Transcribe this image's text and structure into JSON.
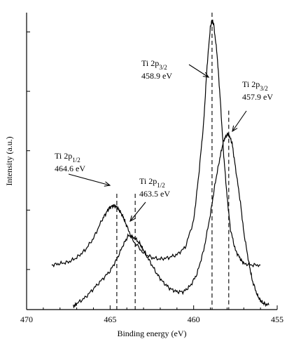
{
  "chart_data": {
    "type": "line",
    "xlabel": "Binding energy (eV)",
    "ylabel": "Intensity (a.u.)",
    "xlim": [
      470,
      455
    ],
    "x_reversed": true,
    "ylim": [
      0,
      1
    ],
    "x_ticks": [
      470,
      465,
      460,
      455
    ],
    "x_minor_ticks": [
      469,
      468,
      467,
      466,
      464,
      463,
      462,
      461,
      459,
      458,
      457,
      456
    ],
    "y_ticks": [
      0.135,
      0.335,
      0.535,
      0.735,
      0.935
    ],
    "y_tick_labels_shown": false,
    "grid": false,
    "series": [
      {
        "x": [
          468.5,
          468.0,
          467.5,
          467.0,
          466.5,
          466.0,
          465.5,
          465.2,
          465.0,
          464.8,
          464.6,
          464.4,
          464.2,
          464.0,
          463.6,
          463.0,
          462.5,
          462.0,
          461.5,
          461.0,
          460.5,
          460.0,
          459.7,
          459.4,
          459.2,
          459.0,
          458.9,
          458.8,
          458.6,
          458.4,
          458.2,
          458.0,
          457.8,
          457.5,
          457.2,
          457.0,
          456.5,
          456.0
        ],
        "y": [
          0.15,
          0.155,
          0.16,
          0.175,
          0.2,
          0.24,
          0.3,
          0.33,
          0.345,
          0.35,
          0.345,
          0.33,
          0.31,
          0.28,
          0.23,
          0.19,
          0.175,
          0.17,
          0.175,
          0.185,
          0.21,
          0.3,
          0.45,
          0.63,
          0.82,
          0.95,
          0.975,
          0.96,
          0.86,
          0.7,
          0.52,
          0.38,
          0.27,
          0.2,
          0.17,
          0.155,
          0.15,
          0.15
        ]
      },
      {
        "x": [
          467.2,
          467.0,
          466.5,
          466.0,
          465.5,
          465.0,
          464.6,
          464.2,
          463.9,
          463.5,
          463.2,
          463.0,
          462.6,
          462.2,
          461.8,
          461.4,
          461.0,
          460.6,
          460.2,
          459.8,
          459.4,
          459.0,
          458.7,
          458.4,
          458.2,
          458.0,
          457.9,
          457.7,
          457.5,
          457.2,
          457.0,
          456.7,
          456.5,
          456.2,
          456.0,
          455.8,
          455.5
        ],
        "y": [
          0.01,
          0.02,
          0.04,
          0.07,
          0.1,
          0.13,
          0.17,
          0.22,
          0.25,
          0.24,
          0.22,
          0.2,
          0.16,
          0.12,
          0.09,
          0.07,
          0.06,
          0.06,
          0.08,
          0.12,
          0.2,
          0.32,
          0.43,
          0.52,
          0.57,
          0.59,
          0.59,
          0.56,
          0.48,
          0.36,
          0.26,
          0.16,
          0.1,
          0.05,
          0.03,
          0.02,
          0.015
        ]
      }
    ],
    "reference_lines": [
      464.6,
      463.5,
      458.9,
      457.9
    ],
    "annotations": [
      {
        "line1": "Ti 2p",
        "line1_sub": "1/2",
        "line2": "464.6 eV",
        "x": 464.6,
        "y": 0.35
      },
      {
        "line1": "Ti 2p",
        "line1_sub": "1/2",
        "line2": "463.5 eV",
        "x": 463.5,
        "y": 0.2
      },
      {
        "line1": "Ti 2p",
        "line1_sub": "3/2",
        "line2": "458.9 eV",
        "x": 458.9,
        "y": 0.8
      },
      {
        "line1": "Ti 2p",
        "line1_sub": "3/2",
        "line2": "457.9 eV",
        "x": 457.9,
        "y": 0.59
      }
    ]
  }
}
